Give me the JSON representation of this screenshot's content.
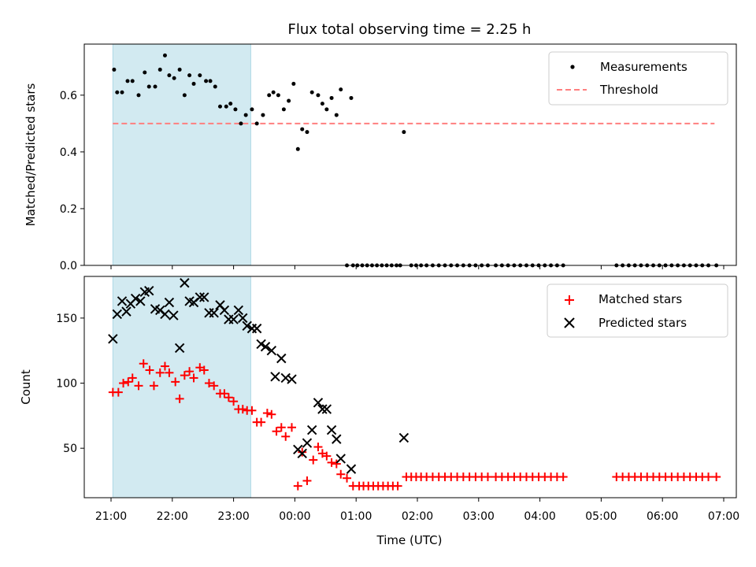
{
  "chart_data": {
    "type": "scatter",
    "title": "Flux total observing time = 2.25 h",
    "xlabel": "Time (UTC)",
    "x_ticks": [
      "21:00",
      "22:00",
      "23:00",
      "00:00",
      "01:00",
      "02:00",
      "03:00",
      "04:00",
      "05:00",
      "06:00",
      "07:00"
    ],
    "x_domain_hours": [
      20.55,
      31.0
    ],
    "highlight_span_hours": [
      21.03,
      23.28
    ],
    "colors": {
      "measurements": "#000000",
      "threshold": "#ff7f7f",
      "matched": "#ff0000",
      "predicted": "#000000",
      "highlight": "#add8e6"
    },
    "top": {
      "ylabel": "Matched/Predicted stars",
      "ylim": [
        0,
        0.78
      ],
      "y_ticks": [
        "0.0",
        "0.2",
        "0.4",
        "0.6"
      ],
      "legend": {
        "position": "top-right",
        "measurements_label": "Measurements",
        "threshold_label": "Threshold"
      },
      "threshold": {
        "value": 0.5,
        "x_range": [
          21.03,
          30.85
        ]
      },
      "measurements": [
        [
          21.05,
          0.69
        ],
        [
          21.1,
          0.61
        ],
        [
          21.18,
          0.61
        ],
        [
          21.27,
          0.65
        ],
        [
          21.35,
          0.65
        ],
        [
          21.45,
          0.6
        ],
        [
          21.55,
          0.68
        ],
        [
          21.62,
          0.63
        ],
        [
          21.72,
          0.63
        ],
        [
          21.8,
          0.69
        ],
        [
          21.88,
          0.74
        ],
        [
          21.95,
          0.67
        ],
        [
          22.03,
          0.66
        ],
        [
          22.12,
          0.69
        ],
        [
          22.2,
          0.6
        ],
        [
          22.28,
          0.67
        ],
        [
          22.35,
          0.64
        ],
        [
          22.45,
          0.67
        ],
        [
          22.55,
          0.65
        ],
        [
          22.62,
          0.65
        ],
        [
          22.7,
          0.63
        ],
        [
          22.78,
          0.56
        ],
        [
          22.88,
          0.56
        ],
        [
          22.95,
          0.57
        ],
        [
          23.03,
          0.55
        ],
        [
          23.12,
          0.5
        ],
        [
          23.2,
          0.53
        ],
        [
          23.3,
          0.55
        ],
        [
          23.38,
          0.5
        ],
        [
          23.48,
          0.53
        ],
        [
          23.58,
          0.6
        ],
        [
          23.65,
          0.61
        ],
        [
          23.73,
          0.6
        ],
        [
          23.82,
          0.55
        ],
        [
          23.9,
          0.58
        ],
        [
          23.98,
          0.64
        ],
        [
          24.05,
          0.41
        ],
        [
          24.12,
          0.48
        ],
        [
          24.2,
          0.47
        ],
        [
          24.28,
          0.61
        ],
        [
          24.38,
          0.6
        ],
        [
          24.45,
          0.57
        ],
        [
          24.52,
          0.55
        ],
        [
          24.6,
          0.59
        ],
        [
          24.68,
          0.53
        ],
        [
          24.75,
          0.62
        ],
        [
          24.92,
          0.59
        ],
        [
          25.78,
          0.47
        ],
        [
          24.85,
          0.0
        ],
        [
          24.95,
          0.0
        ],
        [
          25.02,
          0.0
        ],
        [
          25.1,
          0.0
        ],
        [
          25.18,
          0.0
        ],
        [
          25.26,
          0.0
        ],
        [
          25.34,
          0.0
        ],
        [
          25.42,
          0.0
        ],
        [
          25.5,
          0.0
        ],
        [
          25.58,
          0.0
        ],
        [
          25.66,
          0.0
        ],
        [
          25.72,
          0.0
        ],
        [
          25.9,
          0.0
        ],
        [
          25.98,
          0.0
        ],
        [
          26.06,
          0.0
        ],
        [
          26.15,
          0.0
        ],
        [
          26.25,
          0.0
        ],
        [
          26.35,
          0.0
        ],
        [
          26.45,
          0.0
        ],
        [
          26.55,
          0.0
        ],
        [
          26.65,
          0.0
        ],
        [
          26.75,
          0.0
        ],
        [
          26.85,
          0.0
        ],
        [
          26.95,
          0.0
        ],
        [
          27.05,
          0.0
        ],
        [
          27.15,
          0.0
        ],
        [
          27.28,
          0.0
        ],
        [
          27.38,
          0.0
        ],
        [
          27.48,
          0.0
        ],
        [
          27.58,
          0.0
        ],
        [
          27.68,
          0.0
        ],
        [
          27.78,
          0.0
        ],
        [
          27.88,
          0.0
        ],
        [
          27.98,
          0.0
        ],
        [
          28.08,
          0.0
        ],
        [
          28.18,
          0.0
        ],
        [
          28.28,
          0.0
        ],
        [
          28.38,
          0.0
        ],
        [
          29.25,
          0.0
        ],
        [
          29.35,
          0.0
        ],
        [
          29.45,
          0.0
        ],
        [
          29.55,
          0.0
        ],
        [
          29.65,
          0.0
        ],
        [
          29.75,
          0.0
        ],
        [
          29.85,
          0.0
        ],
        [
          29.95,
          0.0
        ],
        [
          30.05,
          0.0
        ],
        [
          30.15,
          0.0
        ],
        [
          30.25,
          0.0
        ],
        [
          30.35,
          0.0
        ],
        [
          30.45,
          0.0
        ],
        [
          30.55,
          0.0
        ],
        [
          30.65,
          0.0
        ],
        [
          30.75,
          0.0
        ],
        [
          30.88,
          0.0
        ]
      ]
    },
    "bottom": {
      "ylabel": "Count",
      "ylim": [
        12,
        182
      ],
      "y_ticks": [
        50,
        100,
        150
      ],
      "legend": {
        "position": "top-right",
        "matched_label": "Matched stars",
        "predicted_label": "Predicted stars"
      },
      "matched": [
        [
          21.03,
          93
        ],
        [
          21.12,
          93
        ],
        [
          21.2,
          100
        ],
        [
          21.28,
          101
        ],
        [
          21.35,
          104
        ],
        [
          21.45,
          98
        ],
        [
          21.53,
          115
        ],
        [
          21.63,
          110
        ],
        [
          21.7,
          98
        ],
        [
          21.8,
          108
        ],
        [
          21.88,
          113
        ],
        [
          21.95,
          108
        ],
        [
          22.05,
          101
        ],
        [
          22.12,
          88
        ],
        [
          22.2,
          106
        ],
        [
          22.28,
          109
        ],
        [
          22.35,
          104
        ],
        [
          22.45,
          112
        ],
        [
          22.52,
          110
        ],
        [
          22.6,
          100
        ],
        [
          22.68,
          98
        ],
        [
          22.78,
          92
        ],
        [
          22.85,
          92
        ],
        [
          22.92,
          89
        ],
        [
          23.0,
          86
        ],
        [
          23.08,
          80
        ],
        [
          23.15,
          80
        ],
        [
          23.22,
          79
        ],
        [
          23.3,
          79
        ],
        [
          23.38,
          70
        ],
        [
          23.45,
          70
        ],
        [
          23.55,
          77
        ],
        [
          23.62,
          76
        ],
        [
          23.7,
          63
        ],
        [
          23.78,
          66
        ],
        [
          23.85,
          59
        ],
        [
          23.95,
          66
        ],
        [
          24.05,
          21
        ],
        [
          24.12,
          47
        ],
        [
          24.2,
          25
        ],
        [
          24.3,
          41
        ],
        [
          24.38,
          51
        ],
        [
          24.45,
          46
        ],
        [
          24.52,
          44
        ],
        [
          24.6,
          39
        ],
        [
          24.68,
          38
        ],
        [
          24.75,
          30
        ],
        [
          24.85,
          27
        ],
        [
          24.95,
          21
        ],
        [
          25.05,
          21
        ],
        [
          25.12,
          21
        ],
        [
          25.2,
          21
        ],
        [
          25.28,
          21
        ],
        [
          25.36,
          21
        ],
        [
          25.44,
          21
        ],
        [
          25.52,
          21
        ],
        [
          25.6,
          21
        ],
        [
          25.68,
          21
        ],
        [
          25.82,
          28
        ],
        [
          25.9,
          28
        ],
        [
          25.98,
          28
        ],
        [
          26.06,
          28
        ],
        [
          26.15,
          28
        ],
        [
          26.25,
          28
        ],
        [
          26.35,
          28
        ],
        [
          26.45,
          28
        ],
        [
          26.55,
          28
        ],
        [
          26.65,
          28
        ],
        [
          26.75,
          28
        ],
        [
          26.85,
          28
        ],
        [
          26.95,
          28
        ],
        [
          27.05,
          28
        ],
        [
          27.15,
          28
        ],
        [
          27.28,
          28
        ],
        [
          27.38,
          28
        ],
        [
          27.48,
          28
        ],
        [
          27.58,
          28
        ],
        [
          27.68,
          28
        ],
        [
          27.78,
          28
        ],
        [
          27.88,
          28
        ],
        [
          27.98,
          28
        ],
        [
          28.08,
          28
        ],
        [
          28.18,
          28
        ],
        [
          28.28,
          28
        ],
        [
          28.38,
          28
        ],
        [
          29.25,
          28
        ],
        [
          29.35,
          28
        ],
        [
          29.45,
          28
        ],
        [
          29.55,
          28
        ],
        [
          29.65,
          28
        ],
        [
          29.75,
          28
        ],
        [
          29.85,
          28
        ],
        [
          29.95,
          28
        ],
        [
          30.05,
          28
        ],
        [
          30.15,
          28
        ],
        [
          30.25,
          28
        ],
        [
          30.35,
          28
        ],
        [
          30.45,
          28
        ],
        [
          30.55,
          28
        ],
        [
          30.65,
          28
        ],
        [
          30.75,
          28
        ],
        [
          30.88,
          28
        ]
      ],
      "predicted": [
        [
          21.03,
          134
        ],
        [
          21.1,
          153
        ],
        [
          21.18,
          163
        ],
        [
          21.25,
          155
        ],
        [
          21.32,
          161
        ],
        [
          21.4,
          165
        ],
        [
          21.48,
          163
        ],
        [
          21.55,
          170
        ],
        [
          21.62,
          171
        ],
        [
          21.72,
          157
        ],
        [
          21.8,
          156
        ],
        [
          21.88,
          153
        ],
        [
          21.95,
          162
        ],
        [
          22.02,
          152
        ],
        [
          22.12,
          127
        ],
        [
          22.2,
          177
        ],
        [
          22.28,
          163
        ],
        [
          22.35,
          162
        ],
        [
          22.45,
          166
        ],
        [
          22.52,
          166
        ],
        [
          22.6,
          154
        ],
        [
          22.68,
          154
        ],
        [
          22.78,
          160
        ],
        [
          22.85,
          156
        ],
        [
          22.92,
          149
        ],
        [
          23.0,
          149
        ],
        [
          23.08,
          156
        ],
        [
          23.15,
          150
        ],
        [
          23.22,
          144
        ],
        [
          23.3,
          142
        ],
        [
          23.38,
          142
        ],
        [
          23.45,
          130
        ],
        [
          23.52,
          128
        ],
        [
          23.62,
          125
        ],
        [
          23.68,
          105
        ],
        [
          23.78,
          119
        ],
        [
          23.85,
          104
        ],
        [
          23.95,
          103
        ],
        [
          24.05,
          49
        ],
        [
          24.12,
          46
        ],
        [
          24.2,
          54
        ],
        [
          24.28,
          64
        ],
        [
          24.38,
          85
        ],
        [
          24.45,
          80
        ],
        [
          24.52,
          80
        ],
        [
          24.6,
          64
        ],
        [
          24.68,
          57
        ],
        [
          24.75,
          42
        ],
        [
          24.92,
          34
        ],
        [
          25.78,
          58
        ]
      ]
    }
  }
}
